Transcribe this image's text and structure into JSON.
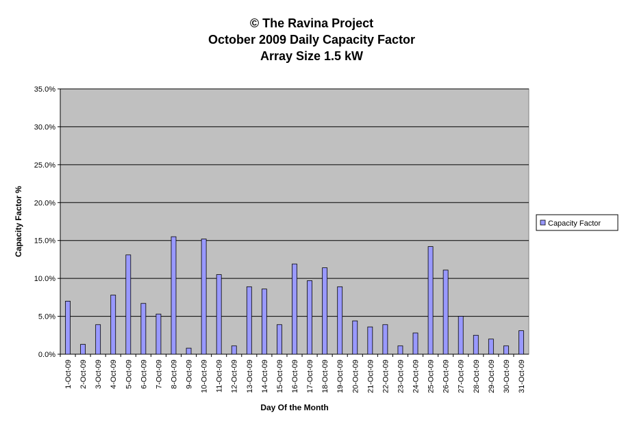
{
  "chart_data": {
    "type": "bar",
    "title": [
      "© The Ravina Project",
      "October 2009 Daily Capacity Factor",
      "Array Size 1.5 kW"
    ],
    "x_label": "Day Of the Month",
    "y_label": "Capacity Factor %",
    "categories": [
      "1-Oct-09",
      "2-Oct-09",
      "3-Oct-09",
      "4-Oct-09",
      "5-Oct-09",
      "6-Oct-09",
      "7-Oct-09",
      "8-Oct-09",
      "9-Oct-09",
      "10-Oct-09",
      "11-Oct-09",
      "12-Oct-09",
      "13-Oct-09",
      "14-Oct-09",
      "15-Oct-09",
      "16-Oct-09",
      "17-Oct-09",
      "18-Oct-09",
      "19-Oct-09",
      "20-Oct-09",
      "21-Oct-09",
      "22-Oct-09",
      "23-Oct-09",
      "24-Oct-09",
      "25-Oct-09",
      "26-Oct-09",
      "27-Oct-09",
      "28-Oct-09",
      "29-Oct-09",
      "30-Oct-09",
      "31-Oct-09"
    ],
    "series": [
      {
        "name": "Capacity Factor",
        "color": "#9999ff",
        "values": [
          7.0,
          1.3,
          3.9,
          7.8,
          13.1,
          6.7,
          5.3,
          15.5,
          0.8,
          15.2,
          10.5,
          1.1,
          8.9,
          8.6,
          3.9,
          11.9,
          9.7,
          11.4,
          8.9,
          4.4,
          3.6,
          3.9,
          1.1,
          2.8,
          14.2,
          11.1,
          5.0,
          2.5,
          2.0,
          1.1,
          3.1
        ]
      }
    ],
    "ylim": [
      0,
      35
    ],
    "yticks": [
      {
        "value": 0,
        "label": "0.0%"
      },
      {
        "value": 5,
        "label": "5.0%"
      },
      {
        "value": 10,
        "label": "10.0%"
      },
      {
        "value": 15,
        "label": "15.0%"
      },
      {
        "value": 20,
        "label": "20.0%"
      },
      {
        "value": 25,
        "label": "25.0%"
      },
      {
        "value": 30,
        "label": "30.0%"
      },
      {
        "value": 35,
        "label": "35.0%"
      }
    ],
    "grid": true,
    "legend": "right"
  }
}
